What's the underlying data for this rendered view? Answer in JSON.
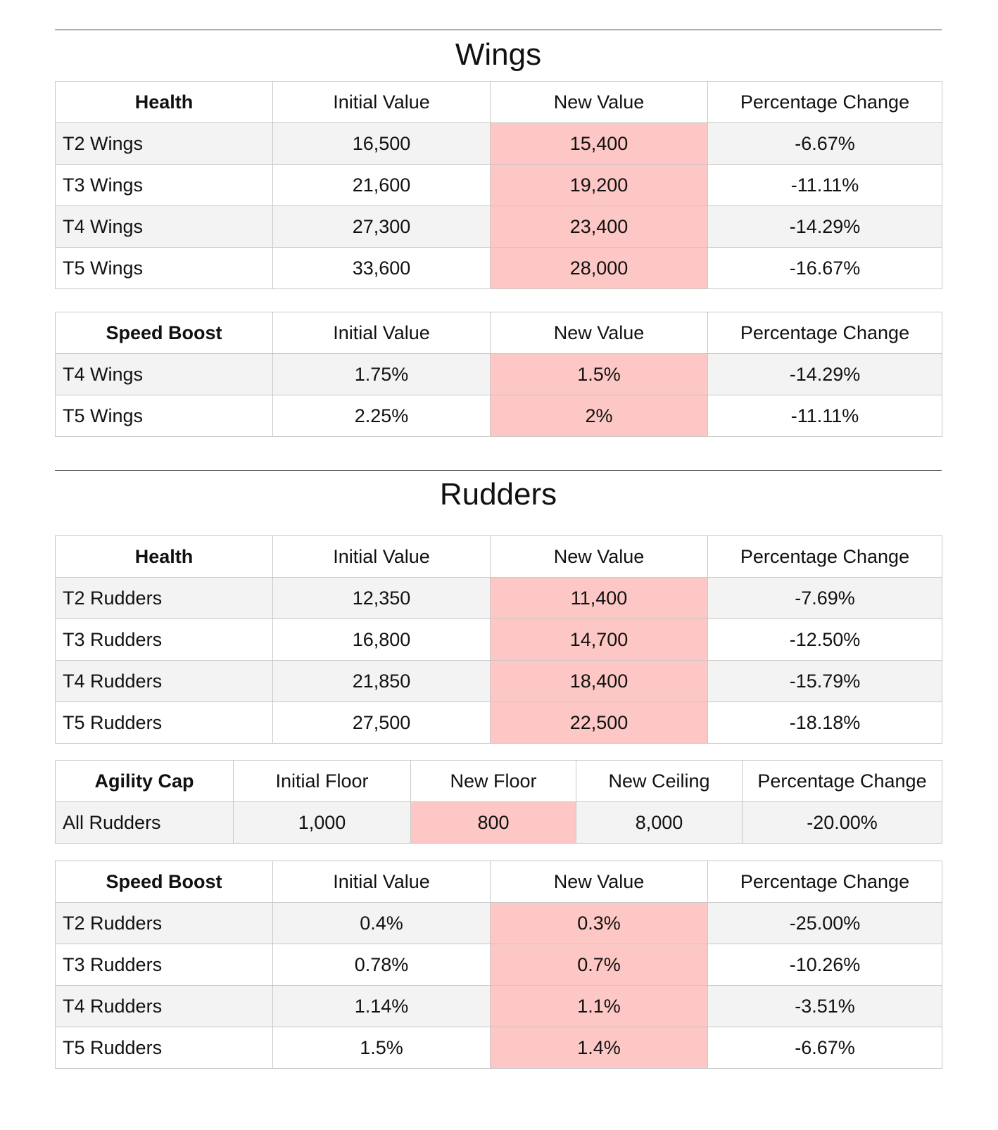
{
  "wings": {
    "title": "Wings",
    "health": {
      "header": [
        "Health",
        "Initial Value",
        "New Value",
        "Percentage Change"
      ],
      "rows": [
        [
          "T2 Wings",
          "16,500",
          "15,400",
          "-6.67%"
        ],
        [
          "T3 Wings",
          "21,600",
          "19,200",
          "-11.11%"
        ],
        [
          "T4 Wings",
          "27,300",
          "23,400",
          "-14.29%"
        ],
        [
          "T5 Wings",
          "33,600",
          "28,000",
          "-16.67%"
        ]
      ]
    },
    "speed_boost": {
      "header": [
        "Speed Boost",
        "Initial Value",
        "New Value",
        "Percentage Change"
      ],
      "rows": [
        [
          "T4 Wings",
          "1.75%",
          "1.5%",
          "-14.29%"
        ],
        [
          "T5 Wings",
          "2.25%",
          "2%",
          "-11.11%"
        ]
      ]
    }
  },
  "rudders": {
    "title": "Rudders",
    "health": {
      "header": [
        "Health",
        "Initial Value",
        "New Value",
        "Percentage Change"
      ],
      "rows": [
        [
          "T2 Rudders",
          "12,350",
          "11,400",
          "-7.69%"
        ],
        [
          "T3 Rudders",
          "16,800",
          "14,700",
          "-12.50%"
        ],
        [
          "T4 Rudders",
          "21,850",
          "18,400",
          "-15.79%"
        ],
        [
          "T5 Rudders",
          "27,500",
          "22,500",
          "-18.18%"
        ]
      ]
    },
    "agility_cap": {
      "header": [
        "Agility Cap",
        "Initial Floor",
        "New Floor",
        "New Ceiling",
        "Percentage Change"
      ],
      "rows": [
        [
          "All Rudders",
          "1,000",
          "800",
          "8,000",
          "-20.00%"
        ]
      ]
    },
    "speed_boost": {
      "header": [
        "Speed Boost",
        "Initial Value",
        "New Value",
        "Percentage Change"
      ],
      "rows": [
        [
          "T2 Rudders",
          "0.4%",
          "0.3%",
          "-25.00%"
        ],
        [
          "T3 Rudders",
          "0.78%",
          "0.7%",
          "-10.26%"
        ],
        [
          "T4 Rudders",
          "1.14%",
          "1.1%",
          "-3.51%"
        ],
        [
          "T5 Rudders",
          "1.5%",
          "1.4%",
          "-6.67%"
        ]
      ]
    }
  },
  "colors": {
    "highlight": "#fcc7c4",
    "alt_row": "#f3f3f3",
    "border": "#c8c8c8"
  }
}
